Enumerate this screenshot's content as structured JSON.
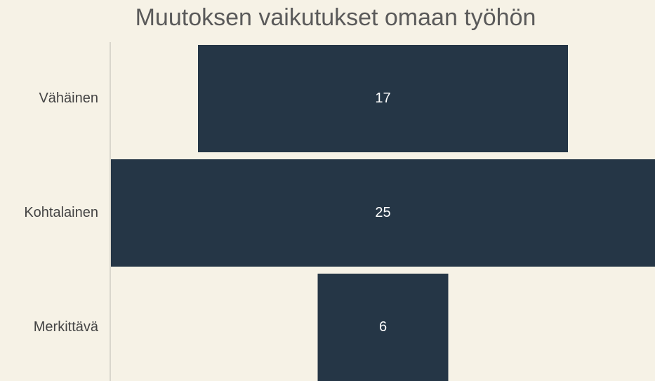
{
  "chart_data": {
    "type": "funnel",
    "title": "Muutoksen vaikutukset omaan työhön",
    "categories": [
      "Vähäinen",
      "Kohtalainen",
      "Merkittävä"
    ],
    "values": [
      17,
      25,
      6
    ],
    "color": "#253646"
  }
}
